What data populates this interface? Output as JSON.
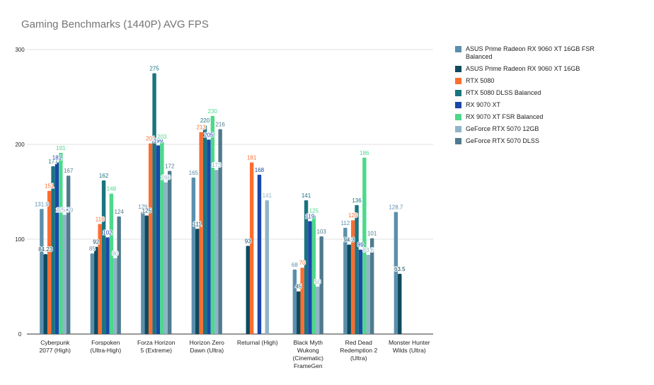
{
  "chart_data": {
    "type": "bar",
    "title": "Gaming Benchmarks (1440P) AVG FPS",
    "xlabel": "",
    "ylabel": "",
    "ylim": [
      0,
      300
    ],
    "yticks": [
      0,
      100,
      200,
      300
    ],
    "grid": true,
    "legend_position": "right",
    "categories": [
      "Cyberpunk 2077 (High)",
      "Forspoken (Ultra-High)",
      "Forza Horizon 5 (Extreme)",
      "Horizon Zero Dawn (Ultra)",
      "Returnal (High)",
      "Black Myth Wukong (Cinematic) FrameGen",
      "Red Dead Redemption 2 (Ultra)",
      "Monster Hunter Wilds (Ultra)"
    ],
    "category_lines": [
      [
        "Cyberpunk",
        "2077 (High)"
      ],
      [
        "Forspoken",
        "(Ultra-High)"
      ],
      [
        "Forza Horizon",
        "5 (Extreme)"
      ],
      [
        "Horizon Zero",
        "Dawn (Ultra)"
      ],
      [
        "Returnal (High)"
      ],
      [
        "Black Myth",
        "Wukong",
        "(Cinematic)",
        "FrameGen"
      ],
      [
        "Red Dead",
        "Redemption 2",
        "(Ultra)"
      ],
      [
        "Monster Hunter",
        "Wilds (Ultra)"
      ]
    ],
    "series": [
      {
        "name": "ASUS Prime Radeon RX 9060 XT 16GB FSR Balanced",
        "color": "#5b8fac",
        "values": [
          131.9,
          85,
          129,
          165,
          null,
          68,
          112,
          128.7
        ]
      },
      {
        "name": "ASUS Prime Radeon RX 9060 XT 16GB",
        "color": "#0d4a60",
        "values": [
          84.23,
          92,
          125,
          111,
          93,
          45,
          94.3,
          63.5
        ]
      },
      {
        "name": "RTX 5080",
        "color": "#ff6d2e",
        "values": [
          151,
          116,
          201,
          213,
          181,
          70,
          120,
          null
        ]
      },
      {
        "name": "RTX 5080 DLSS Balanced",
        "color": "#1a7480",
        "values": [
          177,
          162,
          275,
          220,
          null,
          141,
          136,
          null
        ]
      },
      {
        "name": "RX 9070 XT",
        "color": "#1a47a8",
        "values": [
          181,
          102,
          199,
          205,
          168,
          119,
          89,
          null
        ]
      },
      {
        "name": "RX 9070 XT FSR Balanced",
        "color": "#4cd98a",
        "values": [
          191,
          148,
          203,
          230,
          null,
          125,
          186,
          null
        ]
      },
      {
        "name": "GeForce RTX 5070 12GB",
        "color": "#8fb4c8",
        "values": [
          125.79,
          80,
          160,
          173,
          141,
          50,
          83.6,
          null
        ]
      },
      {
        "name": "GeForce RTX 5070 DLSS",
        "color": "#4f7a8e",
        "values": [
          167,
          124,
          172,
          216,
          null,
          103,
          101,
          null
        ]
      }
    ]
  }
}
